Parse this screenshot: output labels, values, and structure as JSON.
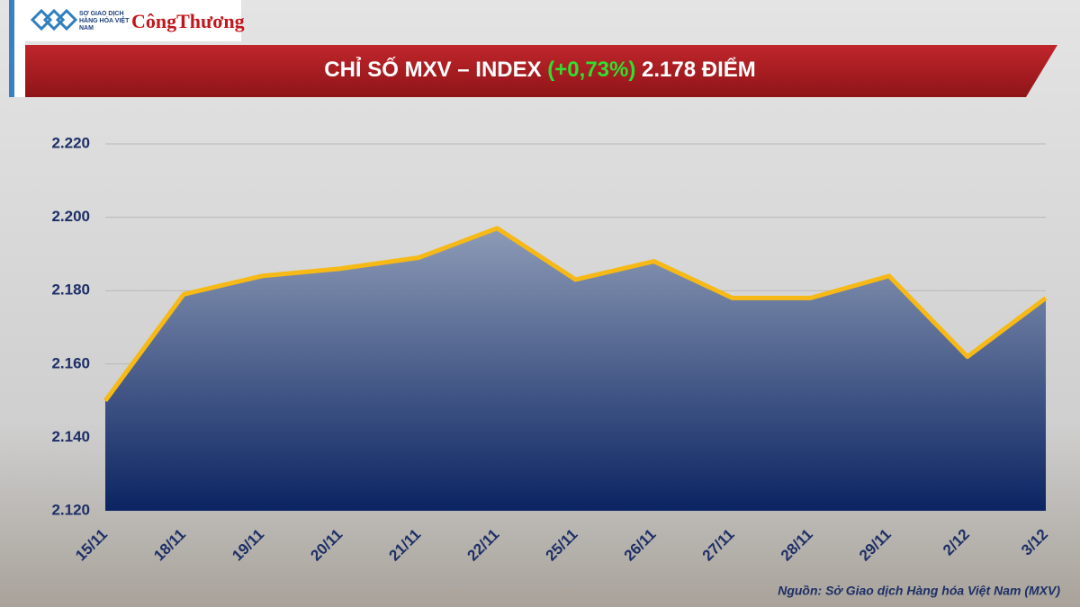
{
  "header": {
    "logo_text": "SỞ GIAO DỊCH HÀNG HÓA VIỆT NAM",
    "brand": "CôngThương"
  },
  "chart_data": {
    "type": "area",
    "title": {
      "prefix": "CHỈ SỐ MXV – INDEX",
      "change": "(+0,73%)",
      "suffix": "2.178 ĐIỂM"
    },
    "categories": [
      "15/11",
      "18/11",
      "19/11",
      "20/11",
      "21/11",
      "22/11",
      "25/11",
      "26/11",
      "27/11",
      "28/11",
      "29/11",
      "2/12",
      "3/12"
    ],
    "values": [
      2150,
      2179,
      2184,
      2186,
      2189,
      2197,
      2183,
      2188,
      2178,
      2178,
      2184,
      2162,
      2178
    ],
    "color": "#f6b915",
    "area_color": [
      "#8d9bb6",
      "#0b2462"
    ],
    "ylim": [
      2120,
      2220
    ],
    "yticks": [
      {
        "value": 2120,
        "label": "2.120"
      },
      {
        "value": 2140,
        "label": "2.140"
      },
      {
        "value": 2160,
        "label": "2.160"
      },
      {
        "value": 2180,
        "label": "2.180"
      },
      {
        "value": 2200,
        "label": "2.200"
      },
      {
        "value": 2220,
        "label": "2.220"
      }
    ],
    "grid": true,
    "source": "Nguồn: Sở Giao dịch Hàng hóa Việt Nam (MXV)"
  }
}
